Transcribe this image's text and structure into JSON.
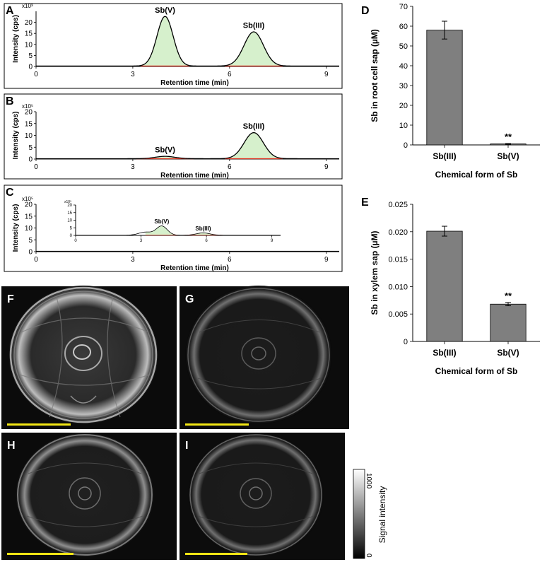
{
  "panels": {
    "A": {
      "letter": "A"
    },
    "B": {
      "letter": "B"
    },
    "C": {
      "letter": "C"
    },
    "D": {
      "letter": "D"
    },
    "E": {
      "letter": "E"
    },
    "F": {
      "letter": "F"
    },
    "G": {
      "letter": "G"
    },
    "H": {
      "letter": "H"
    },
    "I": {
      "letter": "I"
    }
  },
  "colorbar": {
    "label": "Signal intensity",
    "max": "1000",
    "min": "0"
  },
  "colors": {
    "peak_fill": "#d6f0cc",
    "trace": "#000000",
    "baseline": "#e03020",
    "bar": "#7f7f7f",
    "scalebar": "#f2e614"
  },
  "chart_data": [
    {
      "id": "A",
      "type": "line",
      "title": "",
      "xlabel": "Retention time (min)",
      "ylabel": "Intensity (cps)",
      "multiplier": "x10³",
      "xlim": [
        0,
        9.4
      ],
      "ylim": [
        0,
        25
      ],
      "xticks": [
        "0",
        "3",
        "6",
        "9"
      ],
      "xtick_values": [
        0,
        3,
        6,
        9
      ],
      "yticks": [
        "0",
        "5",
        "10",
        "15",
        "20"
      ],
      "ytick_values": [
        0,
        5,
        10,
        15,
        20
      ],
      "peaks": [
        {
          "label": "Sb(V)",
          "center": 4.0,
          "height": 22.5,
          "sigma": 0.25
        },
        {
          "label": "Sb(III)",
          "center": 6.75,
          "height": 15.5,
          "sigma": 0.3
        }
      ]
    },
    {
      "id": "B",
      "type": "line",
      "title": "",
      "xlabel": "Retention time (min)",
      "ylabel": "Intensity (cps)",
      "multiplier": "x10⁵",
      "xlim": [
        0,
        9.4
      ],
      "ylim": [
        0,
        20
      ],
      "xticks": [
        "0",
        "3",
        "6",
        "9"
      ],
      "xtick_values": [
        0,
        3,
        6,
        9
      ],
      "yticks": [
        "0",
        "5",
        "10",
        "15",
        "20"
      ],
      "ytick_values": [
        0,
        5,
        10,
        15,
        20
      ],
      "peaks": [
        {
          "label": "Sb(V)",
          "center": 4.0,
          "height": 1.0,
          "sigma": 0.3
        },
        {
          "label": "Sb(III)",
          "center": 6.75,
          "height": 11.0,
          "sigma": 0.3
        }
      ]
    },
    {
      "id": "C",
      "type": "line",
      "title": "",
      "xlabel": "Retention time (min)",
      "ylabel": "Intensity (cps)",
      "multiplier": "x10⁵",
      "xlim": [
        0,
        9.4
      ],
      "ylim": [
        0,
        20
      ],
      "xticks": [
        "0",
        "3",
        "6",
        "9"
      ],
      "xtick_values": [
        0,
        3,
        6,
        9
      ],
      "yticks": [
        "0",
        "5",
        "10",
        "15",
        "20"
      ],
      "ytick_values": [
        0,
        5,
        10,
        15,
        20
      ],
      "peaks": [],
      "inset": {
        "multiplier": "x10³",
        "xlim": [
          0,
          9.4
        ],
        "ylim": [
          0,
          20
        ],
        "xticks": [
          "0",
          "3",
          "6",
          "9"
        ],
        "xtick_values": [
          0,
          3,
          6,
          9
        ],
        "yticks": [
          "0",
          "5",
          "10",
          "15",
          "20"
        ],
        "ytick_values": [
          0,
          5,
          10,
          15,
          20
        ],
        "peaks": [
          {
            "label": "Sb(V)",
            "center": 3.95,
            "height": 6.0,
            "sigma": 0.25
          },
          {
            "label": "Sb(III)",
            "center": 5.85,
            "height": 1.5,
            "sigma": 0.3
          }
        ],
        "shoulder": {
          "center": 3.2,
          "height": 2.0,
          "sigma": 0.3
        }
      }
    },
    {
      "id": "D",
      "type": "bar",
      "title": "",
      "xlabel": "Chemical form of Sb",
      "ylabel": "Sb in root cell sap (µM)",
      "categories": [
        "Sb(III)",
        "Sb(V)"
      ],
      "values": [
        58,
        0.5
      ],
      "errors": [
        4.5,
        0.2
      ],
      "annotations": [
        "",
        "**"
      ],
      "ylim": [
        0,
        70
      ],
      "yticks": [
        "0",
        "10",
        "20",
        "30",
        "40",
        "50",
        "60",
        "70"
      ],
      "ytick_values": [
        0,
        10,
        20,
        30,
        40,
        50,
        60,
        70
      ]
    },
    {
      "id": "E",
      "type": "bar",
      "title": "",
      "xlabel": "Chemical form of Sb",
      "ylabel": "Sb in xylem sap (µM)",
      "categories": [
        "Sb(III)",
        "Sb(V)"
      ],
      "values": [
        0.0201,
        0.0068
      ],
      "errors": [
        0.0009,
        0.0003
      ],
      "annotations": [
        "",
        "**"
      ],
      "ylim": [
        0,
        0.025
      ],
      "yticks": [
        "0",
        "0.005",
        "0.010",
        "0.015",
        "0.020",
        "0.025"
      ],
      "ytick_values": [
        0,
        0.005,
        0.01,
        0.015,
        0.02,
        0.025
      ]
    }
  ]
}
